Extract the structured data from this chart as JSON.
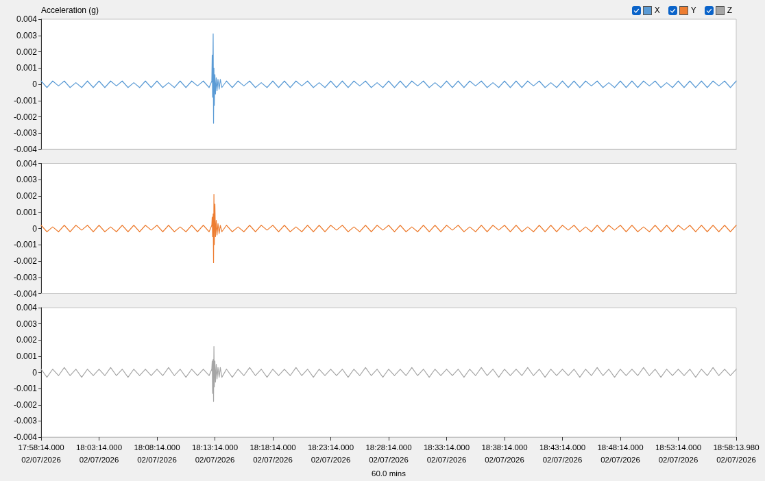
{
  "chart_data": [
    {
      "type": "line",
      "ylabel": "Acceleration (g)",
      "legend": "top right",
      "tick_labels": "y",
      "x": [
        "2026-02-07T17:58:14",
        "2026-02-07T17:58:44",
        "2026-02-07T17:59:14",
        "2026-02-07T17:59:44",
        "2026-02-07T18:00:14",
        "2026-02-07T18:00:44",
        "2026-02-07T18:01:14",
        "2026-02-07T18:01:44",
        "2026-02-07T18:02:14",
        "2026-02-07T18:02:44",
        "2026-02-07T18:03:14",
        "2026-02-07T18:03:44",
        "2026-02-07T18:04:14",
        "2026-02-07T18:04:44",
        "2026-02-07T18:05:14",
        "2026-02-07T18:05:44",
        "2026-02-07T18:06:14",
        "2026-02-07T18:06:44",
        "2026-02-07T18:07:14",
        "2026-02-07T18:07:44",
        "2026-02-07T18:08:14",
        "2026-02-07T18:08:44",
        "2026-02-07T18:09:14",
        "2026-02-07T18:09:44",
        "2026-02-07T18:10:14",
        "2026-02-07T18:10:44",
        "2026-02-07T18:11:14",
        "2026-02-07T18:11:44",
        "2026-02-07T18:12:14",
        "2026-02-07T18:12:44",
        "2026-02-07T18:12:58",
        "2026-02-07T18:13:00",
        "2026-02-07T18:13:02",
        "2026-02-07T18:13:05",
        "2026-02-07T18:13:07",
        "2026-02-07T18:13:09",
        "2026-02-07T18:13:11",
        "2026-02-07T18:13:14",
        "2026-02-07T18:13:17",
        "2026-02-07T18:13:21",
        "2026-02-07T18:13:25",
        "2026-02-07T18:13:30",
        "2026-02-07T18:13:36",
        "2026-02-07T18:13:42",
        "2026-02-07T18:13:50",
        "2026-02-07T18:14:14",
        "2026-02-07T18:14:44",
        "2026-02-07T18:15:14",
        "2026-02-07T18:15:44",
        "2026-02-07T18:16:14",
        "2026-02-07T18:16:44",
        "2026-02-07T18:17:14",
        "2026-02-07T18:17:44",
        "2026-02-07T18:18:14",
        "2026-02-07T18:18:44",
        "2026-02-07T18:19:14",
        "2026-02-07T18:19:44",
        "2026-02-07T18:20:14",
        "2026-02-07T18:20:44",
        "2026-02-07T18:21:14",
        "2026-02-07T18:21:44",
        "2026-02-07T18:22:14",
        "2026-02-07T18:22:44",
        "2026-02-07T18:23:14",
        "2026-02-07T18:23:44",
        "2026-02-07T18:24:14",
        "2026-02-07T18:24:44",
        "2026-02-07T18:25:14",
        "2026-02-07T18:25:44",
        "2026-02-07T18:26:14",
        "2026-02-07T18:26:44",
        "2026-02-07T18:27:14",
        "2026-02-07T18:27:44",
        "2026-02-07T18:28:14",
        "2026-02-07T18:28:44",
        "2026-02-07T18:29:14",
        "2026-02-07T18:29:44",
        "2026-02-07T18:30:14",
        "2026-02-07T18:30:44",
        "2026-02-07T18:31:14",
        "2026-02-07T18:31:44",
        "2026-02-07T18:32:14",
        "2026-02-07T18:32:44",
        "2026-02-07T18:33:14",
        "2026-02-07T18:33:44",
        "2026-02-07T18:34:14",
        "2026-02-07T18:34:44",
        "2026-02-07T18:35:14",
        "2026-02-07T18:35:44",
        "2026-02-07T18:36:14",
        "2026-02-07T18:36:44",
        "2026-02-07T18:37:14",
        "2026-02-07T18:37:44",
        "2026-02-07T18:38:14",
        "2026-02-07T18:38:44",
        "2026-02-07T18:39:14",
        "2026-02-07T18:39:44",
        "2026-02-07T18:40:14",
        "2026-02-07T18:40:44",
        "2026-02-07T18:41:14",
        "2026-02-07T18:41:44",
        "2026-02-07T18:42:14",
        "2026-02-07T18:42:44",
        "2026-02-07T18:43:14",
        "2026-02-07T18:43:44",
        "2026-02-07T18:44:14",
        "2026-02-07T18:44:44",
        "2026-02-07T18:45:14",
        "2026-02-07T18:45:44",
        "2026-02-07T18:46:14",
        "2026-02-07T18:46:44",
        "2026-02-07T18:47:14",
        "2026-02-07T18:47:44",
        "2026-02-07T18:48:14",
        "2026-02-07T18:48:44",
        "2026-02-07T18:49:14",
        "2026-02-07T18:49:44",
        "2026-02-07T18:50:14",
        "2026-02-07T18:50:44",
        "2026-02-07T18:51:14",
        "2026-02-07T18:51:44",
        "2026-02-07T18:52:14",
        "2026-02-07T18:52:44",
        "2026-02-07T18:53:14",
        "2026-02-07T18:53:44",
        "2026-02-07T18:54:14",
        "2026-02-07T18:54:44",
        "2026-02-07T18:55:14",
        "2026-02-07T18:55:44",
        "2026-02-07T18:56:14",
        "2026-02-07T18:56:44",
        "2026-02-07T18:57:14",
        "2026-02-07T18:57:44",
        "2026-02-07T18:58:13.98"
      ],
      "xlim": [
        "2026-02-07T17:58:14",
        "2026-02-07T18:58:13.98"
      ],
      "ylim": [
        -0.004,
        0.004
      ],
      "yticks": [
        -0.004,
        -0.003,
        -0.002,
        -0.001,
        0,
        0.001,
        0.002,
        0.003,
        0.004
      ],
      "series": [
        {
          "name": "X",
          "color": "#5b9bd5",
          "values": [
            0.0002,
            -0.0002,
            0.0002,
            -0.0001,
            0.0002,
            -0.0002,
            0.0001,
            -0.0002,
            0.0002,
            -0.0002,
            0.0002,
            -0.0002,
            0.0002,
            -0.0001,
            0.0002,
            -0.0002,
            0.0001,
            -0.0002,
            0.0002,
            -0.0002,
            0.0002,
            -0.0002,
            0.0001,
            -0.0002,
            0.0002,
            -0.0002,
            0.0002,
            -0.0001,
            0.0002,
            -0.0002,
            0.0002,
            0.0018,
            -0.0008,
            0.0031,
            -0.0024,
            0.001,
            -0.0013,
            0.0006,
            -0.0006,
            0.0004,
            -0.0004,
            0.0003,
            -0.0003,
            0.0003,
            -0.0002,
            0.0002,
            -0.0002,
            0.0002,
            -0.0001,
            0.0002,
            -0.0002,
            0.0001,
            -0.0002,
            0.0002,
            -0.0002,
            0.0002,
            -0.0002,
            0.0002,
            -0.0001,
            0.0002,
            -0.0002,
            0.0001,
            -0.0002,
            0.0002,
            -0.0002,
            0.0002,
            -0.0002,
            0.0002,
            -0.0001,
            0.0002,
            -0.0002,
            0.0001,
            -0.0002,
            0.0002,
            -0.0002,
            0.0002,
            -0.0002,
            0.0002,
            -0.0001,
            0.0002,
            -0.0002,
            0.0001,
            -0.0002,
            0.0002,
            -0.0002,
            0.0002,
            -0.0002,
            0.0002,
            -0.0001,
            0.0002,
            -0.0002,
            0.0001,
            -0.0002,
            0.0002,
            -0.0002,
            0.0002,
            -0.0002,
            0.0002,
            -0.0001,
            0.0002,
            -0.0002,
            0.0001,
            -0.0002,
            0.0002,
            -0.0002,
            0.0002,
            -0.0002,
            0.0002,
            -0.0001,
            0.0002,
            -0.0002,
            0.0001,
            -0.0002,
            0.0002,
            -0.0002,
            0.0002,
            -0.0002,
            0.0002,
            -0.0001,
            0.0002,
            -0.0002,
            0.0001,
            -0.0002,
            0.0002,
            -0.0002,
            0.0002,
            -0.0002,
            0.0002,
            -0.0002,
            0.0002,
            -0.0001,
            0.0002,
            -0.0002,
            0.0002
          ]
        }
      ]
    },
    {
      "type": "line",
      "legend": "top right",
      "tick_labels": "y",
      "x": [
        "2026-02-07T17:58:14",
        "2026-02-07T17:58:44",
        "2026-02-07T17:59:14",
        "2026-02-07T17:59:44",
        "2026-02-07T18:00:14",
        "2026-02-07T18:00:44",
        "2026-02-07T18:01:14",
        "2026-02-07T18:01:44",
        "2026-02-07T18:02:14",
        "2026-02-07T18:02:44",
        "2026-02-07T18:03:14",
        "2026-02-07T18:03:44",
        "2026-02-07T18:04:14",
        "2026-02-07T18:04:44",
        "2026-02-07T18:05:14",
        "2026-02-07T18:05:44",
        "2026-02-07T18:06:14",
        "2026-02-07T18:06:44",
        "2026-02-07T18:07:14",
        "2026-02-07T18:07:44",
        "2026-02-07T18:08:14",
        "2026-02-07T18:08:44",
        "2026-02-07T18:09:14",
        "2026-02-07T18:09:44",
        "2026-02-07T18:10:14",
        "2026-02-07T18:10:44",
        "2026-02-07T18:11:14",
        "2026-02-07T18:11:44",
        "2026-02-07T18:12:14",
        "2026-02-07T18:12:44",
        "2026-02-07T18:12:58",
        "2026-02-07T18:13:00",
        "2026-02-07T18:13:02",
        "2026-02-07T18:13:05",
        "2026-02-07T18:13:07",
        "2026-02-07T18:13:09",
        "2026-02-07T18:13:11",
        "2026-02-07T18:13:14",
        "2026-02-07T18:13:17",
        "2026-02-07T18:13:21",
        "2026-02-07T18:13:25",
        "2026-02-07T18:13:30",
        "2026-02-07T18:13:36",
        "2026-02-07T18:13:42",
        "2026-02-07T18:13:50",
        "2026-02-07T18:14:14",
        "2026-02-07T18:14:44",
        "2026-02-07T18:15:14",
        "2026-02-07T18:15:44",
        "2026-02-07T18:16:14",
        "2026-02-07T18:16:44",
        "2026-02-07T18:17:14",
        "2026-02-07T18:17:44",
        "2026-02-07T18:18:14",
        "2026-02-07T18:18:44",
        "2026-02-07T18:19:14",
        "2026-02-07T18:19:44",
        "2026-02-07T18:20:14",
        "2026-02-07T18:20:44",
        "2026-02-07T18:21:14",
        "2026-02-07T18:21:44",
        "2026-02-07T18:22:14",
        "2026-02-07T18:22:44",
        "2026-02-07T18:23:14",
        "2026-02-07T18:23:44",
        "2026-02-07T18:24:14",
        "2026-02-07T18:24:44",
        "2026-02-07T18:25:14",
        "2026-02-07T18:25:44",
        "2026-02-07T18:26:14",
        "2026-02-07T18:26:44",
        "2026-02-07T18:27:14",
        "2026-02-07T18:27:44",
        "2026-02-07T18:28:14",
        "2026-02-07T18:28:44",
        "2026-02-07T18:29:14",
        "2026-02-07T18:29:44",
        "2026-02-07T18:30:14",
        "2026-02-07T18:30:44",
        "2026-02-07T18:31:14",
        "2026-02-07T18:31:44",
        "2026-02-07T18:32:14",
        "2026-02-07T18:32:44",
        "2026-02-07T18:33:14",
        "2026-02-07T18:33:44",
        "2026-02-07T18:34:14",
        "2026-02-07T18:34:44",
        "2026-02-07T18:35:14",
        "2026-02-07T18:35:44",
        "2026-02-07T18:36:14",
        "2026-02-07T18:36:44",
        "2026-02-07T18:37:14",
        "2026-02-07T18:37:44",
        "2026-02-07T18:38:14",
        "2026-02-07T18:38:44",
        "2026-02-07T18:39:14",
        "2026-02-07T18:39:44",
        "2026-02-07T18:40:14",
        "2026-02-07T18:40:44",
        "2026-02-07T18:41:14",
        "2026-02-07T18:41:44",
        "2026-02-07T18:42:14",
        "2026-02-07T18:42:44",
        "2026-02-07T18:43:14",
        "2026-02-07T18:43:44",
        "2026-02-07T18:44:14",
        "2026-02-07T18:44:44",
        "2026-02-07T18:45:14",
        "2026-02-07T18:45:44",
        "2026-02-07T18:46:14",
        "2026-02-07T18:46:44",
        "2026-02-07T18:47:14",
        "2026-02-07T18:47:44",
        "2026-02-07T18:48:14",
        "2026-02-07T18:48:44",
        "2026-02-07T18:49:14",
        "2026-02-07T18:49:44",
        "2026-02-07T18:50:14",
        "2026-02-07T18:50:44",
        "2026-02-07T18:51:14",
        "2026-02-07T18:51:44",
        "2026-02-07T18:52:14",
        "2026-02-07T18:52:44",
        "2026-02-07T18:53:14",
        "2026-02-07T18:53:44",
        "2026-02-07T18:54:14",
        "2026-02-07T18:54:44",
        "2026-02-07T18:55:14",
        "2026-02-07T18:55:44",
        "2026-02-07T18:56:14",
        "2026-02-07T18:56:44",
        "2026-02-07T18:57:14",
        "2026-02-07T18:57:44",
        "2026-02-07T18:58:13.98"
      ],
      "xlim": [
        "2026-02-07T17:58:14",
        "2026-02-07T18:58:13.98"
      ],
      "ylim": [
        -0.004,
        0.004
      ],
      "yticks": [
        -0.004,
        -0.003,
        -0.002,
        -0.001,
        0,
        0.001,
        0.002,
        0.003,
        0.004
      ],
      "series": [
        {
          "name": "Y",
          "color": "#ed7d31",
          "values": [
            0.0002,
            -0.0002,
            0.0001,
            -0.0002,
            0.0002,
            -0.0002,
            0.0002,
            -0.0001,
            0.0002,
            -0.0002,
            0.0002,
            -0.0002,
            0.0001,
            -0.0002,
            0.0002,
            -0.0002,
            0.0002,
            -0.0002,
            0.0002,
            -0.0001,
            0.0002,
            -0.0002,
            0.0002,
            -0.0002,
            0.0001,
            -0.0002,
            0.0002,
            -0.0002,
            0.0002,
            -0.0002,
            0.0002,
            0.0007,
            -0.0005,
            0.0009,
            -0.0021,
            0.0021,
            -0.001,
            0.0015,
            -0.0005,
            0.0005,
            -0.0004,
            0.0003,
            -0.0003,
            0.0002,
            -0.0002,
            0.0002,
            -0.0002,
            0.0001,
            -0.0002,
            0.0002,
            -0.0002,
            0.0002,
            -0.0001,
            0.0002,
            -0.0002,
            0.0002,
            -0.0002,
            0.0001,
            -0.0002,
            0.0002,
            -0.0002,
            0.0002,
            -0.0002,
            0.0002,
            -0.0001,
            0.0002,
            -0.0002,
            0.0001,
            -0.0002,
            0.0002,
            -0.0002,
            0.0002,
            -0.0001,
            0.0002,
            -0.0002,
            0.0002,
            -0.0002,
            0.0001,
            -0.0002,
            0.0002,
            -0.0002,
            0.0002,
            -0.0002,
            0.0002,
            -0.0001,
            0.0002,
            -0.0002,
            0.0001,
            -0.0002,
            0.0002,
            -0.0002,
            0.0002,
            -0.0001,
            0.0002,
            -0.0002,
            0.0002,
            -0.0002,
            0.0001,
            -0.0002,
            0.0002,
            -0.0002,
            0.0002,
            -0.0002,
            0.0002,
            -0.0001,
            0.0002,
            -0.0002,
            0.0001,
            -0.0002,
            0.0002,
            -0.0002,
            0.0002,
            -0.0001,
            0.0002,
            -0.0002,
            0.0002,
            -0.0002,
            0.0001,
            -0.0002,
            0.0002,
            -0.0002,
            0.0002,
            -0.0002,
            0.0002,
            -0.0001,
            0.0002,
            -0.0002,
            0.0002,
            -0.0002,
            0.0002,
            -0.0002,
            0.0002,
            -0.0002,
            0.0002
          ]
        }
      ]
    },
    {
      "type": "line",
      "legend": "top right",
      "xlabel": "60.0 mins",
      "x": [
        "2026-02-07T17:58:14",
        "2026-02-07T17:58:44",
        "2026-02-07T17:59:14",
        "2026-02-07T17:59:44",
        "2026-02-07T18:00:14",
        "2026-02-07T18:00:44",
        "2026-02-07T18:01:14",
        "2026-02-07T18:01:44",
        "2026-02-07T18:02:14",
        "2026-02-07T18:02:44",
        "2026-02-07T18:03:14",
        "2026-02-07T18:03:44",
        "2026-02-07T18:04:14",
        "2026-02-07T18:04:44",
        "2026-02-07T18:05:14",
        "2026-02-07T18:05:44",
        "2026-02-07T18:06:14",
        "2026-02-07T18:06:44",
        "2026-02-07T18:07:14",
        "2026-02-07T18:07:44",
        "2026-02-07T18:08:14",
        "2026-02-07T18:08:44",
        "2026-02-07T18:09:14",
        "2026-02-07T18:09:44",
        "2026-02-07T18:10:14",
        "2026-02-07T18:10:44",
        "2026-02-07T18:11:14",
        "2026-02-07T18:11:44",
        "2026-02-07T18:12:14",
        "2026-02-07T18:12:44",
        "2026-02-07T18:12:58",
        "2026-02-07T18:13:00",
        "2026-02-07T18:13:02",
        "2026-02-07T18:13:05",
        "2026-02-07T18:13:07",
        "2026-02-07T18:13:09",
        "2026-02-07T18:13:11",
        "2026-02-07T18:13:14",
        "2026-02-07T18:13:17",
        "2026-02-07T18:13:21",
        "2026-02-07T18:13:25",
        "2026-02-07T18:13:30",
        "2026-02-07T18:13:36",
        "2026-02-07T18:13:42",
        "2026-02-07T18:13:50",
        "2026-02-07T18:14:14",
        "2026-02-07T18:14:44",
        "2026-02-07T18:15:14",
        "2026-02-07T18:15:44",
        "2026-02-07T18:16:14",
        "2026-02-07T18:16:44",
        "2026-02-07T18:17:14",
        "2026-02-07T18:17:44",
        "2026-02-07T18:18:14",
        "2026-02-07T18:18:44",
        "2026-02-07T18:19:14",
        "2026-02-07T18:19:44",
        "2026-02-07T18:20:14",
        "2026-02-07T18:20:44",
        "2026-02-07T18:21:14",
        "2026-02-07T18:21:44",
        "2026-02-07T18:22:14",
        "2026-02-07T18:22:44",
        "2026-02-07T18:23:14",
        "2026-02-07T18:23:44",
        "2026-02-07T18:24:14",
        "2026-02-07T18:24:44",
        "2026-02-07T18:25:14",
        "2026-02-07T18:25:44",
        "2026-02-07T18:26:14",
        "2026-02-07T18:26:44",
        "2026-02-07T18:27:14",
        "2026-02-07T18:27:44",
        "2026-02-07T18:28:14",
        "2026-02-07T18:28:44",
        "2026-02-07T18:29:14",
        "2026-02-07T18:29:44",
        "2026-02-07T18:30:14",
        "2026-02-07T18:30:44",
        "2026-02-07T18:31:14",
        "2026-02-07T18:31:44",
        "2026-02-07T18:32:14",
        "2026-02-07T18:32:44",
        "2026-02-07T18:33:14",
        "2026-02-07T18:33:44",
        "2026-02-07T18:34:14",
        "2026-02-07T18:34:44",
        "2026-02-07T18:35:14",
        "2026-02-07T18:35:44",
        "2026-02-07T18:36:14",
        "2026-02-07T18:36:44",
        "2026-02-07T18:37:14",
        "2026-02-07T18:37:44",
        "2026-02-07T18:38:14",
        "2026-02-07T18:38:44",
        "2026-02-07T18:39:14",
        "2026-02-07T18:39:44",
        "2026-02-07T18:40:14",
        "2026-02-07T18:40:44",
        "2026-02-07T18:41:14",
        "2026-02-07T18:41:44",
        "2026-02-07T18:42:14",
        "2026-02-07T18:42:44",
        "2026-02-07T18:43:14",
        "2026-02-07T18:43:44",
        "2026-02-07T18:44:14",
        "2026-02-07T18:44:44",
        "2026-02-07T18:45:14",
        "2026-02-07T18:45:44",
        "2026-02-07T18:46:14",
        "2026-02-07T18:46:44",
        "2026-02-07T18:47:14",
        "2026-02-07T18:47:44",
        "2026-02-07T18:48:14",
        "2026-02-07T18:48:44",
        "2026-02-07T18:49:14",
        "2026-02-07T18:49:44",
        "2026-02-07T18:50:14",
        "2026-02-07T18:50:44",
        "2026-02-07T18:51:14",
        "2026-02-07T18:51:44",
        "2026-02-07T18:52:14",
        "2026-02-07T18:52:44",
        "2026-02-07T18:53:14",
        "2026-02-07T18:53:44",
        "2026-02-07T18:54:14",
        "2026-02-07T18:54:44",
        "2026-02-07T18:55:14",
        "2026-02-07T18:55:44",
        "2026-02-07T18:56:14",
        "2026-02-07T18:56:44",
        "2026-02-07T18:57:14",
        "2026-02-07T18:57:44",
        "2026-02-07T18:58:13.98"
      ],
      "xlim": [
        "2026-02-07T17:58:14",
        "2026-02-07T18:58:13.98"
      ],
      "xticks": [
        {
          "value": "2026-02-07T17:58:14",
          "label": "17:58:14.000\n02/07/2026"
        },
        {
          "value": "2026-02-07T18:03:14",
          "label": "18:03:14.000\n02/07/2026"
        },
        {
          "value": "2026-02-07T18:08:14",
          "label": "18:08:14.000\n02/07/2026"
        },
        {
          "value": "2026-02-07T18:13:14",
          "label": "18:13:14.000\n02/07/2026"
        },
        {
          "value": "2026-02-07T18:18:14",
          "label": "18:18:14.000\n02/07/2026"
        },
        {
          "value": "2026-02-07T18:23:14",
          "label": "18:23:14.000\n02/07/2026"
        },
        {
          "value": "2026-02-07T18:28:14",
          "label": "18:28:14.000\n02/07/2026"
        },
        {
          "value": "2026-02-07T18:33:14",
          "label": "18:33:14.000\n02/07/2026"
        },
        {
          "value": "2026-02-07T18:38:14",
          "label": "18:38:14.000\n02/07/2026"
        },
        {
          "value": "2026-02-07T18:43:14",
          "label": "18:43:14.000\n02/07/2026"
        },
        {
          "value": "2026-02-07T18:48:14",
          "label": "18:48:14.000\n02/07/2026"
        },
        {
          "value": "2026-02-07T18:53:14",
          "label": "18:53:14.000\n02/07/2026"
        },
        {
          "value": "2026-02-07T18:58:13.98",
          "label": "18:58:13.980\n02/07/2026"
        }
      ],
      "ylim": [
        -0.004,
        0.004
      ],
      "yticks": [
        -0.004,
        -0.003,
        -0.002,
        -0.001,
        0,
        0.001,
        0.002,
        0.003,
        0.004
      ],
      "series": [
        {
          "name": "Z",
          "color": "#a5a5a5",
          "values": [
            0.0002,
            -0.0003,
            0.0002,
            -0.0002,
            0.0003,
            -0.0002,
            0.0002,
            -0.0003,
            0.0002,
            -0.0002,
            0.0002,
            -0.0002,
            0.0003,
            -0.0002,
            0.0002,
            -0.0003,
            0.0002,
            -0.0002,
            0.0002,
            -0.0002,
            0.0002,
            -0.0002,
            0.0003,
            -0.0002,
            0.0002,
            -0.0003,
            0.0002,
            -0.0002,
            0.0002,
            -0.0002,
            0.0002,
            0.0007,
            -0.0013,
            0.0008,
            -0.0018,
            0.0016,
            -0.0009,
            0.0007,
            -0.0006,
            0.0005,
            -0.0004,
            0.0003,
            -0.0003,
            0.0003,
            -0.0003,
            0.0002,
            -0.0003,
            0.0002,
            -0.0002,
            0.0003,
            -0.0002,
            0.0002,
            -0.0003,
            0.0002,
            -0.0002,
            0.0002,
            -0.0002,
            0.0003,
            -0.0002,
            0.0002,
            -0.0003,
            0.0002,
            -0.0002,
            0.0002,
            -0.0002,
            0.0002,
            -0.0003,
            0.0002,
            -0.0002,
            0.0003,
            -0.0002,
            0.0002,
            -0.0003,
            0.0002,
            -0.0002,
            0.0002,
            -0.0002,
            0.0003,
            -0.0002,
            0.0002,
            -0.0003,
            0.0002,
            -0.0002,
            0.0002,
            -0.0002,
            0.0002,
            -0.0003,
            0.0002,
            -0.0002,
            0.0003,
            -0.0002,
            0.0002,
            -0.0003,
            0.0002,
            -0.0002,
            0.0002,
            -0.0002,
            0.0003,
            -0.0002,
            0.0002,
            -0.0003,
            0.0002,
            -0.0002,
            0.0002,
            -0.0002,
            0.0002,
            -0.0003,
            0.0002,
            -0.0002,
            0.0003,
            -0.0002,
            0.0002,
            -0.0003,
            0.0002,
            -0.0002,
            0.0002,
            -0.0002,
            0.0003,
            -0.0002,
            0.0002,
            -0.0003,
            0.0002,
            -0.0002,
            0.0002,
            -0.0002,
            0.0002,
            -0.0003,
            0.0002,
            -0.0002,
            0.0003,
            -0.0002,
            0.0002,
            -0.0002,
            0.0002
          ]
        }
      ]
    }
  ]
}
